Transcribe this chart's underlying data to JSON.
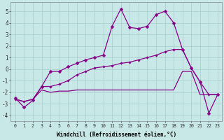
{
  "xlabel": "Windchill (Refroidissement éolien,°C)",
  "background_color": "#c8e8e8",
  "grid_color": "#aacccc",
  "line_color": "#880088",
  "x_labels": [
    "0",
    "1",
    "2",
    "3",
    "4",
    "5",
    "6",
    "7",
    "8",
    "9",
    "10",
    "11",
    "12",
    "13",
    "14",
    "15",
    "16",
    "17",
    "18",
    "19",
    "20",
    "21",
    "22",
    "23"
  ],
  "ylim": [
    -4.5,
    5.8
  ],
  "xlim": [
    -0.5,
    23.5
  ],
  "series1": [
    -2.5,
    -3.3,
    -2.7,
    -1.5,
    -0.2,
    -0.2,
    0.2,
    0.5,
    0.8,
    1.0,
    1.2,
    3.7,
    5.2,
    3.6,
    3.5,
    3.7,
    4.7,
    5.0,
    4.0,
    1.7,
    0.1,
    -1.1,
    -3.8,
    -2.2
  ],
  "series2": [
    -2.6,
    -2.8,
    -2.6,
    -1.5,
    -1.5,
    -1.3,
    -1.0,
    -0.5,
    -0.2,
    0.1,
    0.2,
    0.3,
    0.5,
    0.6,
    0.8,
    1.0,
    1.2,
    1.5,
    1.7,
    1.7,
    0.1,
    -1.1,
    -2.2,
    -2.2
  ],
  "series3": [
    -2.6,
    -2.8,
    -2.6,
    -1.8,
    -2.0,
    -1.9,
    -1.9,
    -1.8,
    -1.8,
    -1.8,
    -1.8,
    -1.8,
    -1.8,
    -1.8,
    -1.8,
    -1.8,
    -1.8,
    -1.8,
    -1.8,
    -0.2,
    -0.2,
    -2.2,
    -2.2,
    -2.2
  ],
  "yticks": [
    -4,
    -3,
    -2,
    -1,
    0,
    1,
    2,
    3,
    4,
    5
  ]
}
